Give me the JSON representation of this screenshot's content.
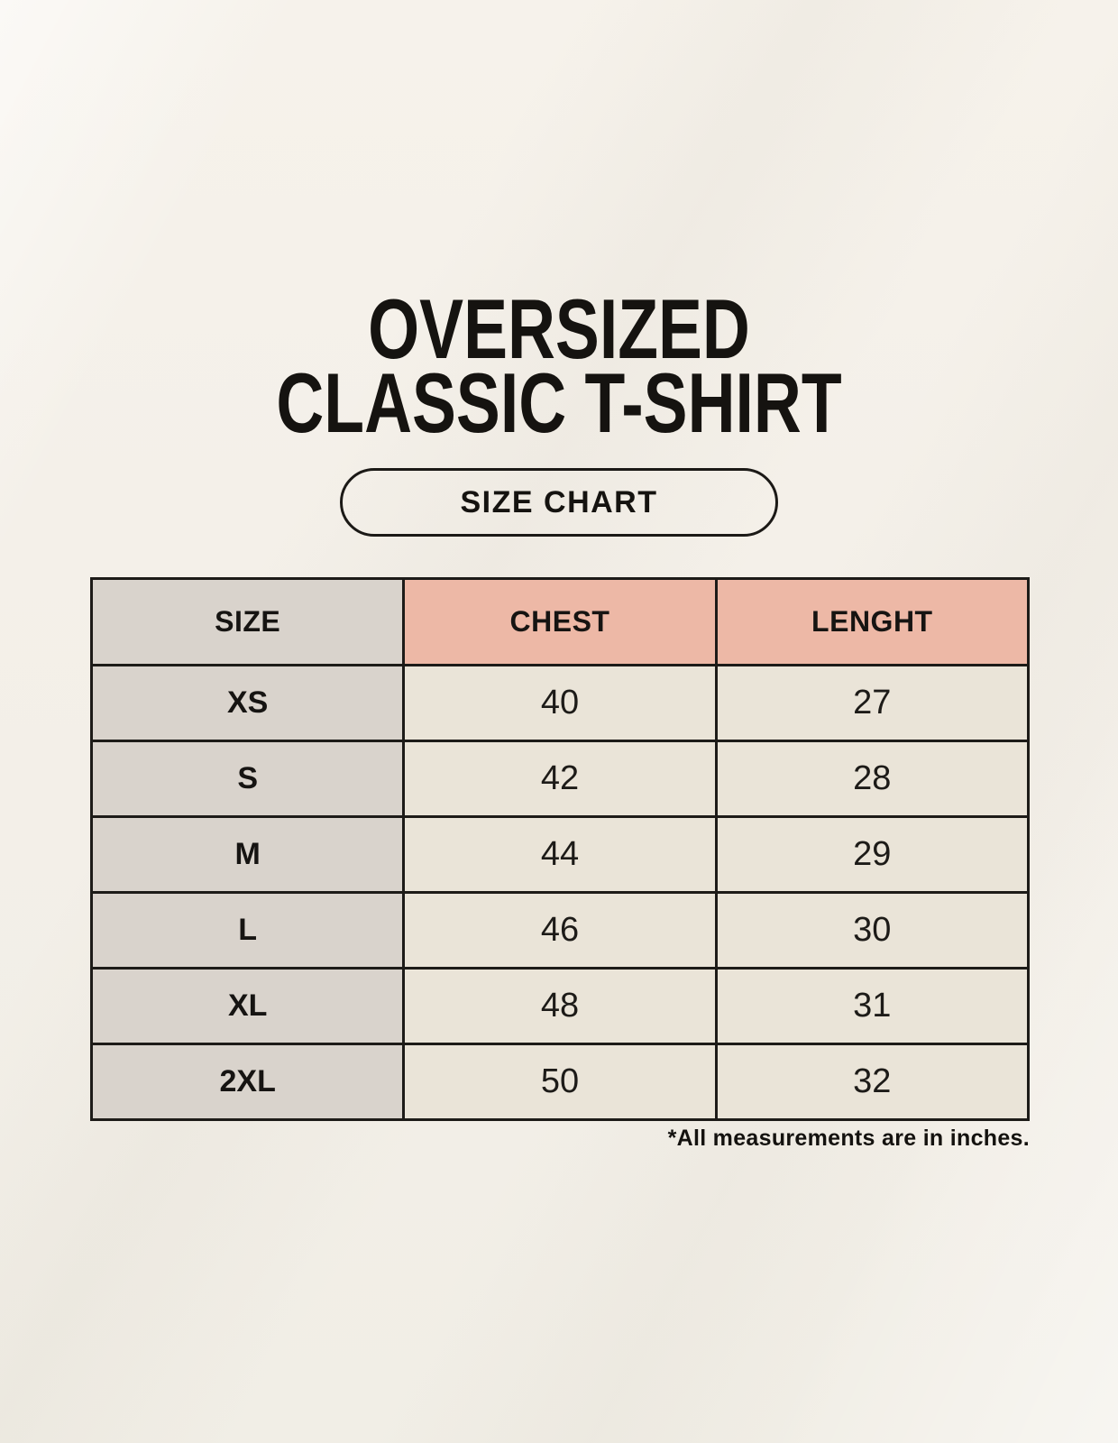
{
  "title": {
    "line1": "OVERSIZED",
    "line2": "CLASSIC T-SHIRT"
  },
  "size_chart_button": {
    "label": "SIZE CHART"
  },
  "table": {
    "columns": [
      "SIZE",
      "CHEST",
      "LENGHT"
    ],
    "rows": [
      {
        "size": "XS",
        "chest": "40",
        "lenght": "27"
      },
      {
        "size": "S",
        "chest": "42",
        "lenght": "28"
      },
      {
        "size": "M",
        "chest": "44",
        "lenght": "29"
      },
      {
        "size": "L",
        "chest": "46",
        "lenght": "30"
      },
      {
        "size": "XL",
        "chest": "48",
        "lenght": "31"
      },
      {
        "size": "2XL",
        "chest": "50",
        "lenght": "32"
      }
    ]
  },
  "footnote": "*All measurements are in inches.",
  "chart_data": {
    "type": "table",
    "title": "OVERSIZED CLASSIC T-SHIRT — SIZE CHART",
    "columns": [
      "SIZE",
      "CHEST",
      "LENGHT"
    ],
    "units": "inches",
    "rows": [
      [
        "XS",
        40,
        27
      ],
      [
        "S",
        42,
        28
      ],
      [
        "M",
        44,
        29
      ],
      [
        "L",
        46,
        30
      ],
      [
        "XL",
        48,
        31
      ],
      [
        "2XL",
        50,
        32
      ]
    ],
    "note": "*All measurements are in inches."
  },
  "colors": {
    "page_background": "#f4f1e9",
    "size_column_background": "#d9d3cc",
    "measure_header_background": "#edb8a6",
    "data_cell_background": "#eae4d8",
    "border": "#1d1b18",
    "text": "#151310"
  }
}
